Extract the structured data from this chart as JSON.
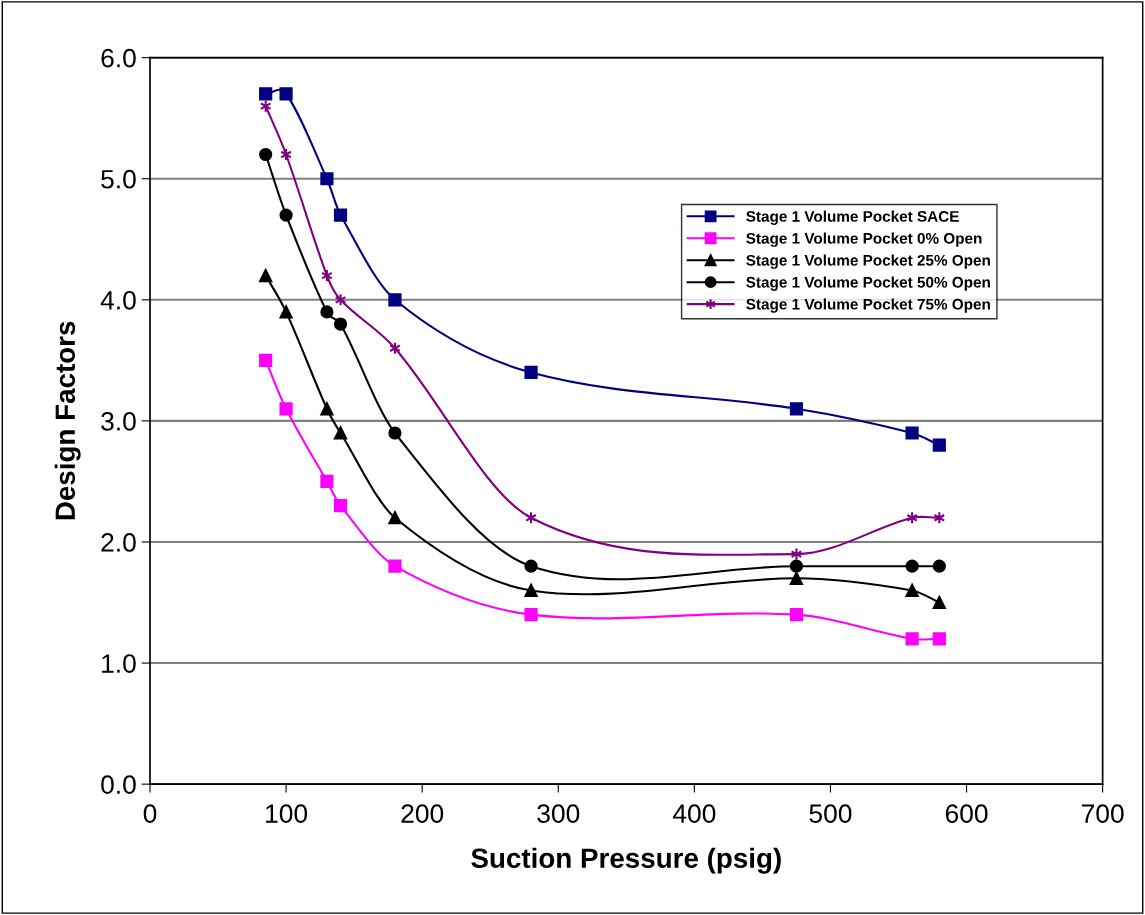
{
  "chart_data": {
    "type": "line",
    "xlabel": "Suction Pressure (psig)",
    "ylabel": "Design Factors",
    "x": [
      85,
      100,
      130,
      140,
      180,
      280,
      475,
      560,
      580
    ],
    "series": [
      {
        "name": "Stage 1 Volume Pocket SACE",
        "color": "#000080",
        "marker": "square",
        "values": [
          5.7,
          5.7,
          5.0,
          4.7,
          4.0,
          3.4,
          3.1,
          2.9,
          2.8
        ]
      },
      {
        "name": "Stage 1 Volume Pocket 0% Open",
        "color": "#ff00ff",
        "marker": "square",
        "values": [
          3.5,
          3.1,
          2.5,
          2.3,
          1.8,
          1.4,
          1.4,
          1.2,
          1.2
        ]
      },
      {
        "name": "Stage 1 Volume Pocket 25% Open",
        "color": "#000000",
        "marker": "triangle",
        "values": [
          4.2,
          3.9,
          3.1,
          2.9,
          2.2,
          1.6,
          1.7,
          1.6,
          1.5
        ]
      },
      {
        "name": "Stage 1 Volume Pocket 50% Open",
        "color": "#000000",
        "marker": "circle",
        "values": [
          5.2,
          4.7,
          3.9,
          3.8,
          2.9,
          1.8,
          1.8,
          1.8,
          1.8
        ]
      },
      {
        "name": "Stage 1 Volume Pocket 75% Open",
        "color": "#800080",
        "marker": "cross",
        "values": [
          5.6,
          5.2,
          4.2,
          4.0,
          3.6,
          2.2,
          1.9,
          2.2,
          2.2
        ]
      }
    ],
    "xlim": [
      0,
      700
    ],
    "xticks": [
      0,
      100,
      200,
      300,
      400,
      500,
      600,
      700
    ],
    "ylim": [
      0,
      6
    ],
    "yticks": [
      {
        "value": 0,
        "label": "0.0"
      },
      {
        "value": 1,
        "label": "1.0"
      },
      {
        "value": 2,
        "label": "2.0"
      },
      {
        "value": 3,
        "label": "3.0"
      },
      {
        "value": 4,
        "label": "4.0"
      },
      {
        "value": 5,
        "label": "5.0"
      },
      {
        "value": 6,
        "label": "6.0"
      }
    ],
    "grid": "y",
    "legend": "top right",
    "line_style": "solid"
  }
}
